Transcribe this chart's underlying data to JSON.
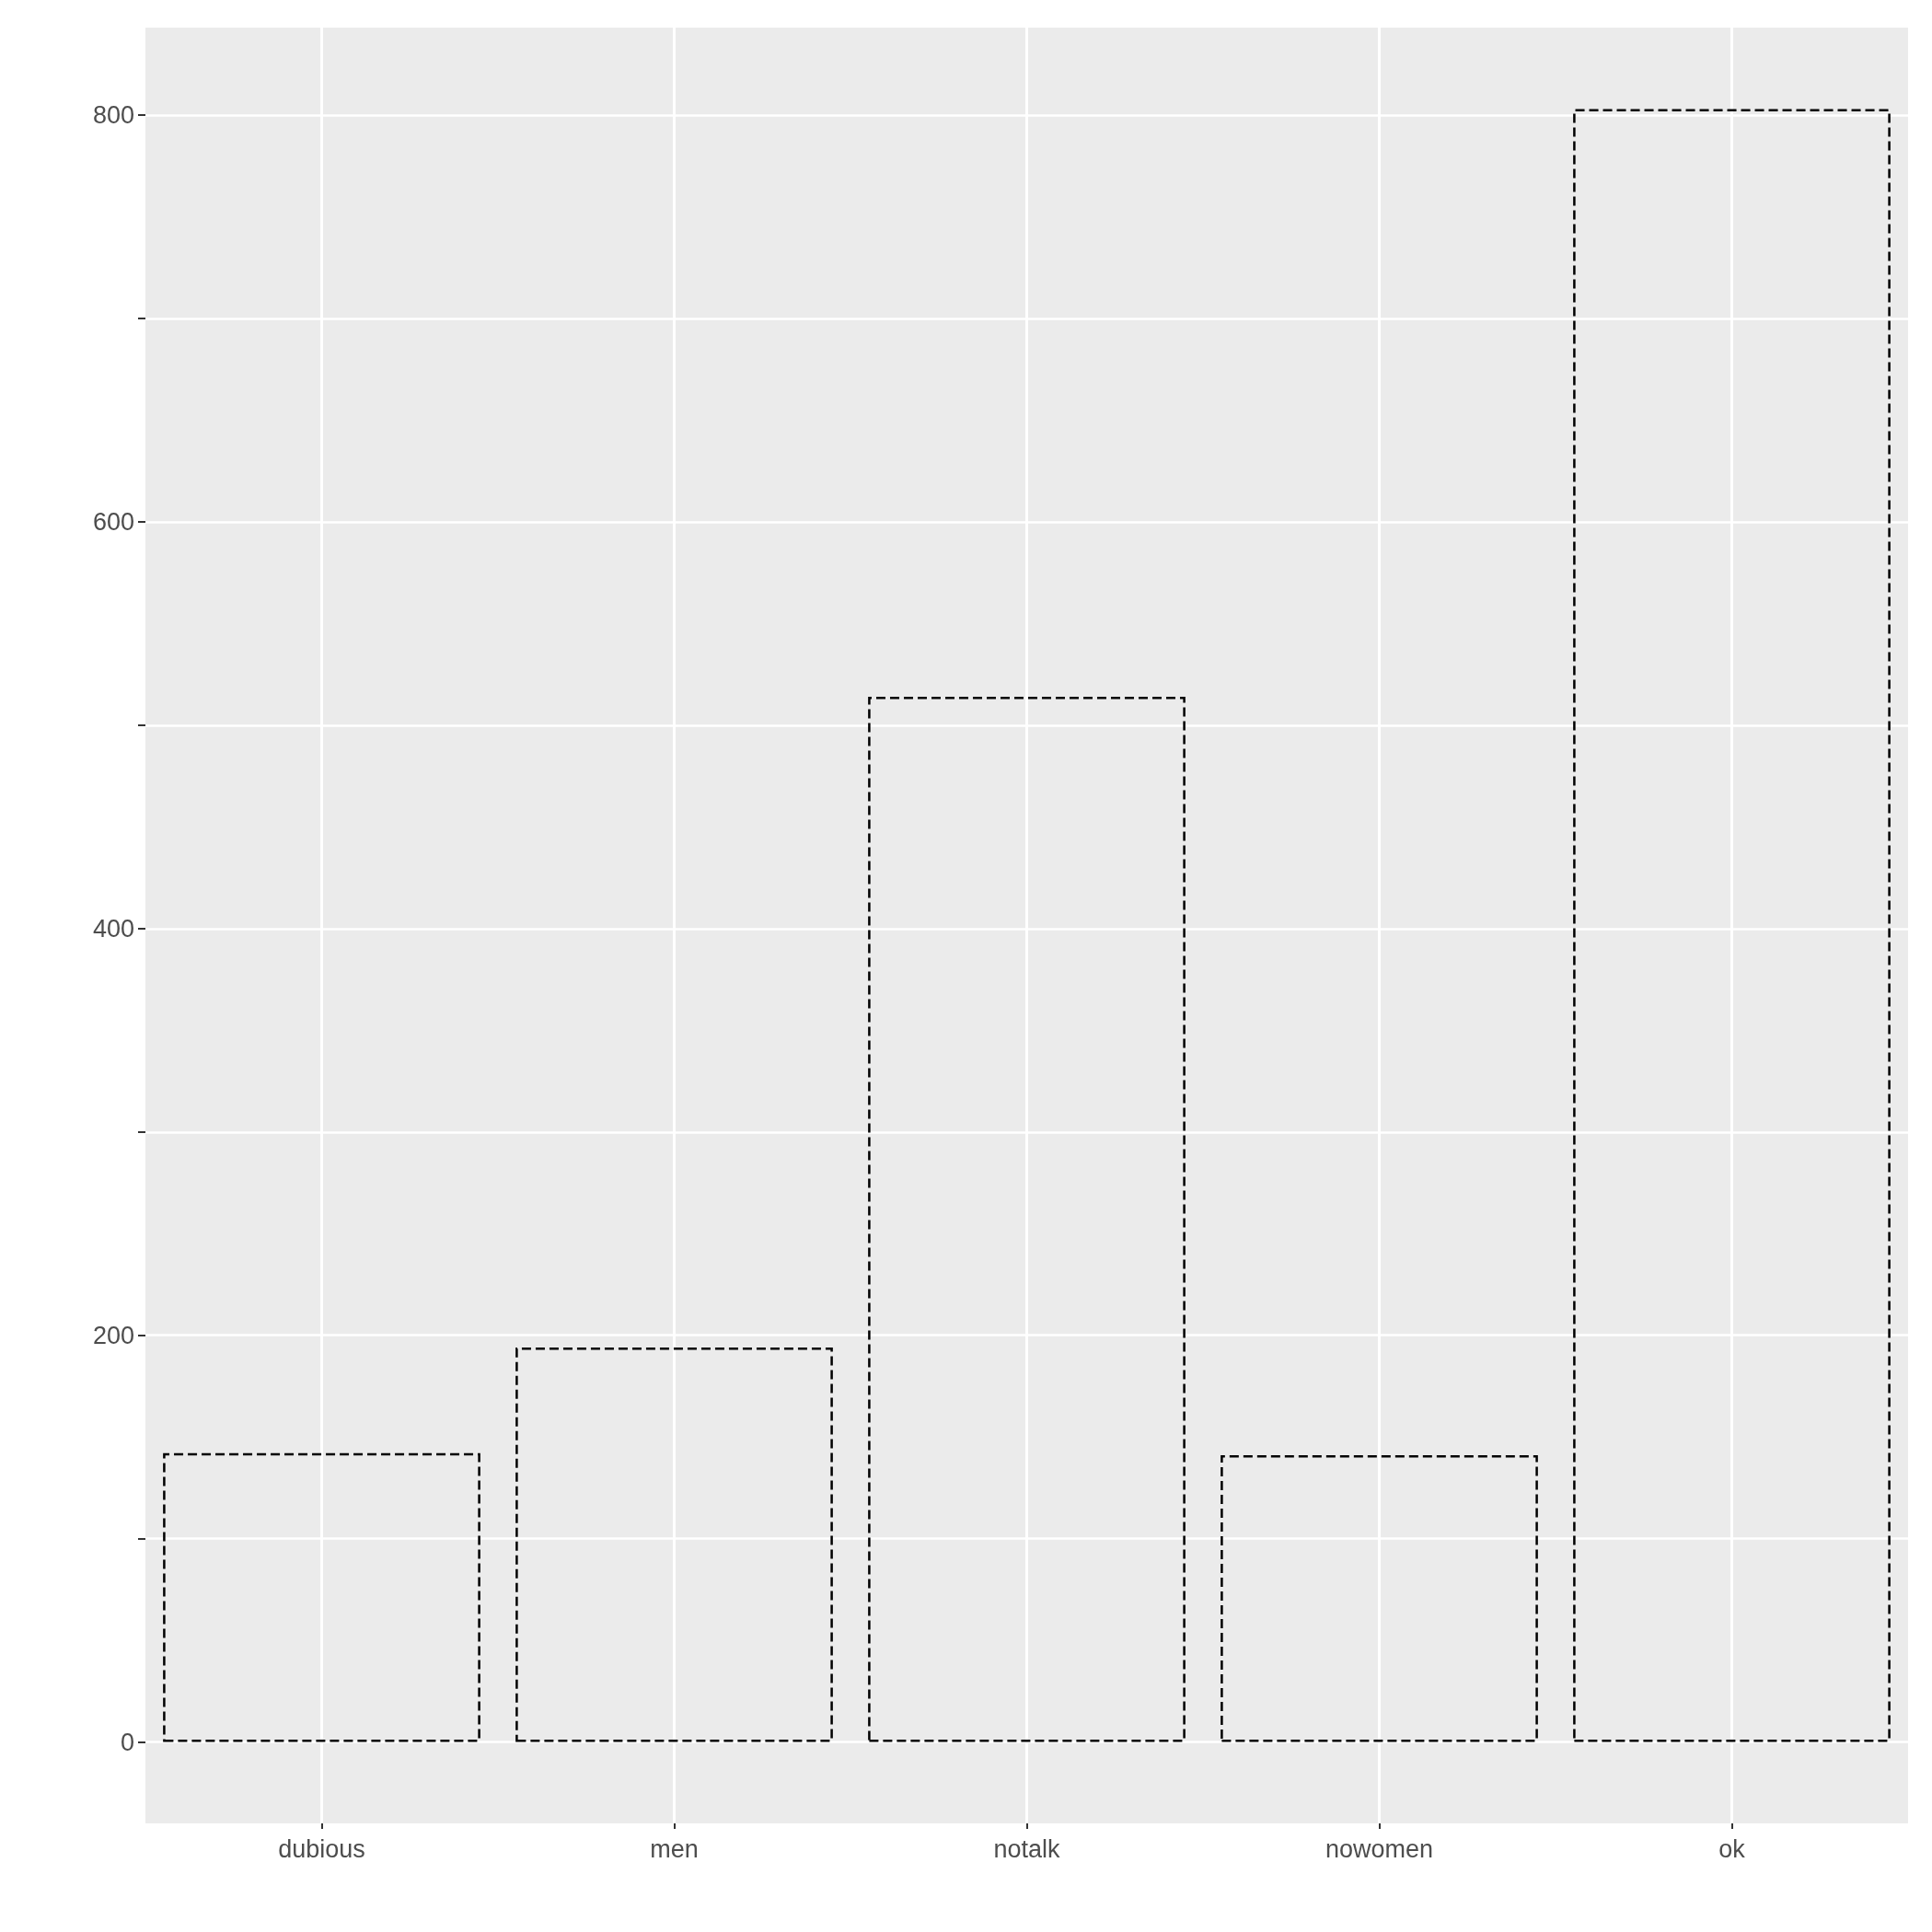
{
  "chart_data": {
    "type": "bar",
    "categories": [
      "dubious",
      "men",
      "notalk",
      "nowomen",
      "ok"
    ],
    "values": [
      142,
      194,
      514,
      141,
      803
    ],
    "color": "#000000",
    "line_style": "dashed",
    "grid": true,
    "ylim": [
      -40,
      843
    ],
    "yticks": [
      0,
      {
        "value": 100,
        "label": null
      },
      200,
      {
        "value": 300,
        "label": null
      },
      400,
      {
        "value": 500,
        "label": null
      },
      600,
      {
        "value": 700,
        "label": null
      },
      800
    ]
  }
}
